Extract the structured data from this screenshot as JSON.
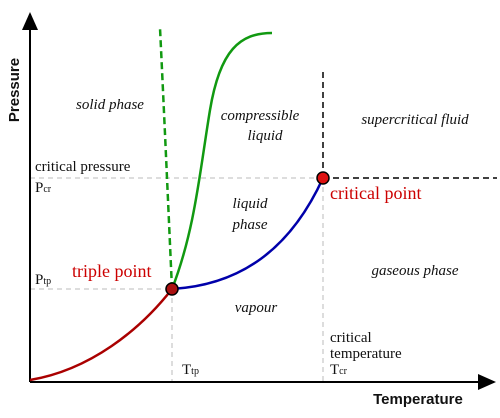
{
  "axes": {
    "y_label": "Pressure",
    "x_label": "Temperature"
  },
  "regions": {
    "solid": "solid phase",
    "compressible_liquid": [
      "compressible",
      "liquid"
    ],
    "supercritical": "supercritical fluid",
    "liquid": [
      "liquid",
      "phase"
    ],
    "gaseous": "gaseous phase",
    "vapour": "vapour"
  },
  "points": {
    "triple": "triple point",
    "critical": "critical point"
  },
  "levels": {
    "critical_pressure": "critical pressure",
    "p_cr": {
      "main": "P",
      "sub": "cr"
    },
    "p_tp": {
      "main": "P",
      "sub": "tp"
    },
    "t_tp": {
      "main": "T",
      "sub": "tp"
    },
    "critical_temperature": [
      "critical",
      "temperature"
    ],
    "t_cr": {
      "main": "T",
      "sub": "cr"
    }
  }
}
